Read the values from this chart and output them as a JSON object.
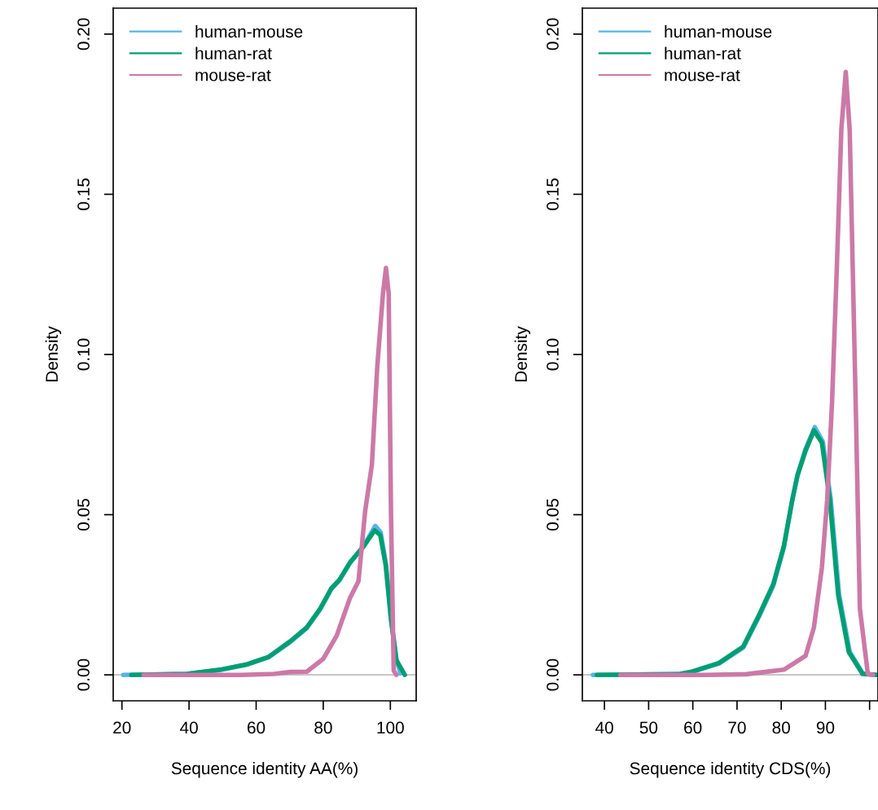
{
  "chart_data": [
    {
      "type": "line",
      "xlabel": "Sequence identity AA(%)",
      "ylabel": "Density",
      "xlim": [
        17.4,
        107.7
      ],
      "ylim": [
        -0.0081,
        0.2081
      ],
      "xticks": [
        20,
        40,
        60,
        80,
        100
      ],
      "yticks": [
        {
          "value": 0,
          "label": "0.00"
        },
        {
          "value": 0.05,
          "label": "0.05"
        },
        {
          "value": 0.1,
          "label": "0.10"
        },
        {
          "value": 0.15,
          "label": "0.15"
        },
        {
          "value": 0.2,
          "label": "0.20"
        }
      ],
      "legend": "top left",
      "grid": false,
      "ref_lines": [
        {
          "axis": "y",
          "value": 0,
          "color": "#bebebe"
        }
      ],
      "series": [
        {
          "name": "human-mouse",
          "color": "#56b4e9",
          "x": [
            20.4,
            39.4,
            49.2,
            57.3,
            63.7,
            70.2,
            75.1,
            79.1,
            82.4,
            84.8,
            88.0,
            92.1,
            95.5,
            97.1,
            98.7,
            100.2,
            101.8,
            103.0
          ],
          "values": [
            0,
            0.0003,
            0.0015,
            0.0032,
            0.0055,
            0.0103,
            0.0146,
            0.0205,
            0.0268,
            0.0295,
            0.035,
            0.0403,
            0.0465,
            0.0445,
            0.0345,
            0.0175,
            0.0048,
            0.0005
          ]
        },
        {
          "name": "human-rat",
          "color": "#009e73",
          "x": [
            22.8,
            39.4,
            49.2,
            57.3,
            63.7,
            70.2,
            75.1,
            79.1,
            82.4,
            84.8,
            88.0,
            92.1,
            95.3,
            97.0,
            98.6,
            100.2,
            101.8,
            104.3
          ],
          "values": [
            0,
            0.0003,
            0.0016,
            0.0033,
            0.0056,
            0.0105,
            0.0148,
            0.0207,
            0.027,
            0.0296,
            0.0351,
            0.0402,
            0.0451,
            0.0436,
            0.0343,
            0.0173,
            0.0046,
            0
          ]
        },
        {
          "name": "mouse-rat",
          "color": "#cc79a7",
          "x": [
            26.5,
            55.6,
            65.4,
            70.2,
            75.1,
            80.0,
            84.0,
            88.0,
            90.5,
            92.5,
            94.5,
            96.1,
            97.8,
            98.7,
            99.5,
            100.2,
            101.0,
            101.8
          ],
          "values": [
            0,
            0,
            0.0003,
            0.0009,
            0.001,
            0.005,
            0.0122,
            0.0241,
            0.0292,
            0.0512,
            0.0656,
            0.0962,
            0.119,
            0.127,
            0.119,
            0.0496,
            0.0013,
            0
          ]
        }
      ]
    },
    {
      "type": "line",
      "xlabel": "Sequence identity CDS(%)",
      "ylabel": "Density",
      "xlim": [
        35.0,
        101.9
      ],
      "ylim": [
        -0.0081,
        0.2081
      ],
      "xticks": [
        40,
        50,
        60,
        70,
        80,
        90,
        {
          "value": 100,
          "label": null
        }
      ],
      "yticks": [
        {
          "value": 0,
          "label": "0.00"
        },
        {
          "value": 0.05,
          "label": "0.05"
        },
        {
          "value": 0.1,
          "label": "0.10"
        },
        {
          "value": 0.15,
          "label": "0.15"
        },
        {
          "value": 0.2,
          "label": "0.20"
        }
      ],
      "legend": "top left",
      "grid": false,
      "ref_lines": [
        {
          "axis": "y",
          "value": 0,
          "color": "#bebebe"
        }
      ],
      "series": [
        {
          "name": "human-mouse",
          "color": "#56b4e9",
          "x": [
            37.4,
            56.7,
            59.8,
            65.9,
            71.4,
            75.1,
            78.2,
            80.6,
            82.5,
            83.7,
            85.5,
            87.6,
            89.4,
            91.2,
            93.1,
            95.5,
            98.5,
            101.5
          ],
          "values": [
            0,
            0.0002,
            0.0009,
            0.0035,
            0.0085,
            0.0185,
            0.0278,
            0.0398,
            0.0545,
            0.0625,
            0.0705,
            0.0773,
            0.0728,
            0.0548,
            0.025,
            0.0072,
            0.0004,
            0
          ]
        },
        {
          "name": "human-rat",
          "color": "#009e73",
          "x": [
            38.3,
            56.7,
            59.8,
            65.9,
            71.4,
            75.1,
            78.2,
            80.6,
            82.5,
            83.7,
            85.5,
            87.4,
            89.2,
            91.0,
            92.9,
            95.3,
            98.4,
            101.7
          ],
          "values": [
            0,
            0.0002,
            0.001,
            0.0037,
            0.0088,
            0.019,
            0.0283,
            0.0402,
            0.0546,
            0.0623,
            0.0699,
            0.0763,
            0.0725,
            0.0546,
            0.0249,
            0.0071,
            0.0003,
            0
          ]
        },
        {
          "name": "mouse-rat",
          "color": "#cc79a7",
          "x": [
            43.6,
            62.9,
            72.1,
            80.6,
            85.5,
            87.4,
            89.2,
            90.4,
            91.5,
            92.6,
            93.6,
            94.6,
            95.5,
            96.9,
            97.8,
            99.6,
            100.8
          ],
          "values": [
            0,
            0,
            0.0002,
            0.0016,
            0.0059,
            0.0148,
            0.0334,
            0.0546,
            0.085,
            0.1276,
            0.17,
            0.1882,
            0.17,
            0.0818,
            0.0207,
            0.0003,
            0
          ]
        }
      ]
    }
  ]
}
